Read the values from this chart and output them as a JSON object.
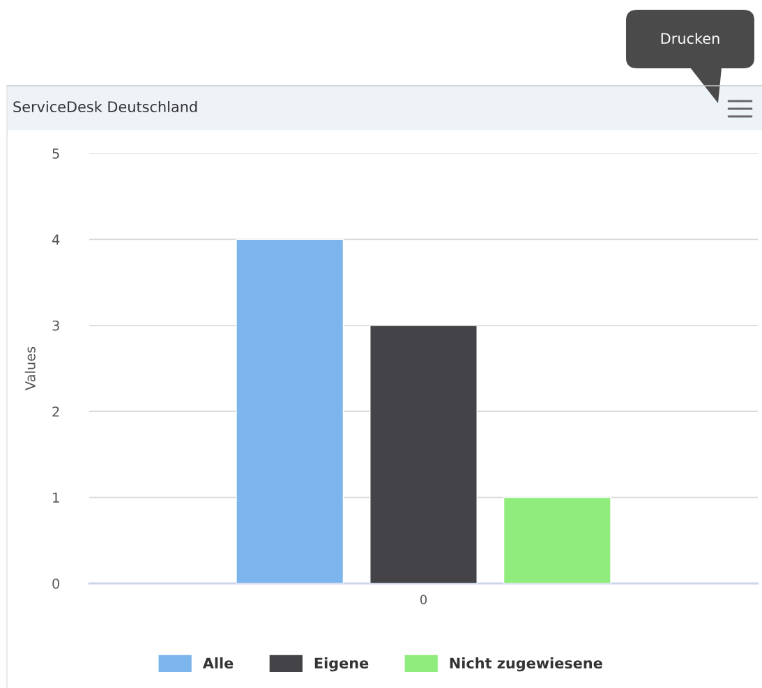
{
  "chart_data": {
    "type": "bar",
    "title": "ServiceDesk Deutschland",
    "ylabel": "Values",
    "categories": [
      "0"
    ],
    "series": [
      {
        "name": "Alle",
        "color": "#7cb5ec",
        "values": [
          4
        ]
      },
      {
        "name": "Eigene",
        "color": "#434348",
        "values": [
          3
        ]
      },
      {
        "name": "Nicht zugewiesene",
        "color": "#90ed7d",
        "values": [
          1
        ]
      }
    ],
    "ylim": [
      0,
      5
    ],
    "yticks": [
      0,
      1,
      2,
      3,
      4,
      5
    ],
    "grid": "y",
    "legend": "bottom",
    "annotations": [
      "Drucken"
    ]
  }
}
